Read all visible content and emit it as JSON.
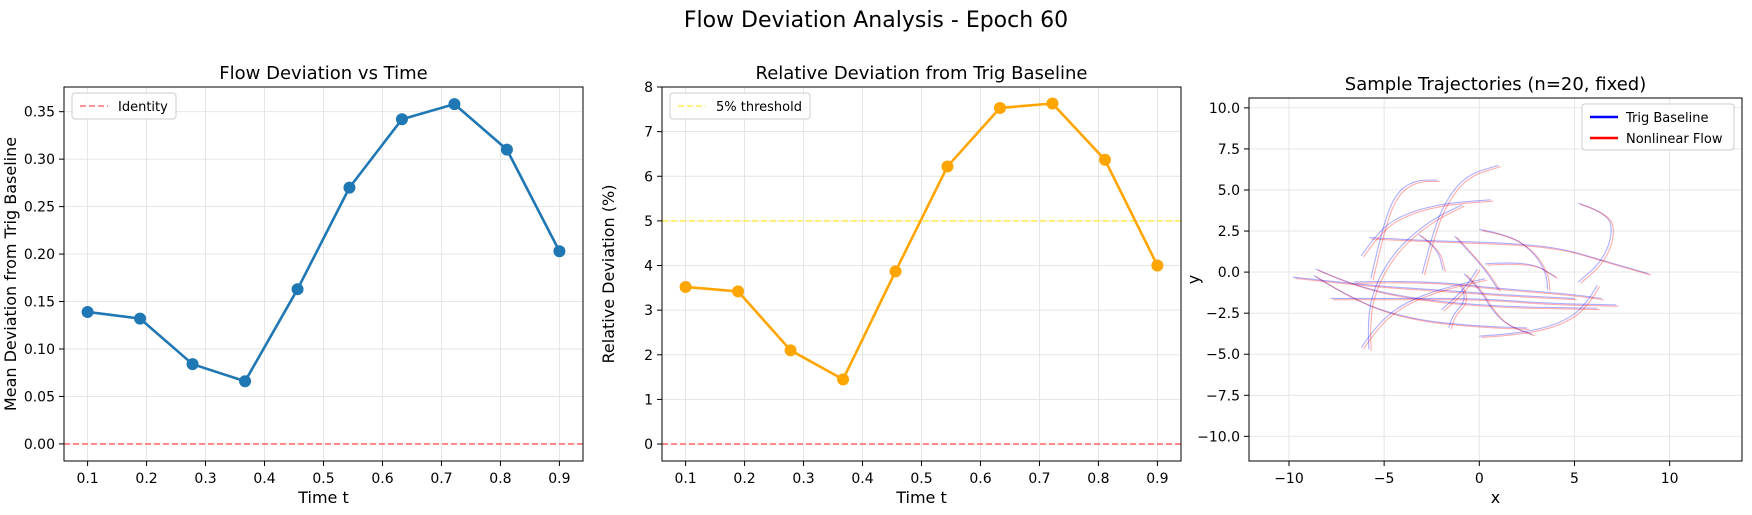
{
  "figure": {
    "suptitle": "Flow Deviation Analysis - Epoch 60"
  },
  "chart_data": [
    {
      "type": "line",
      "title": "Flow Deviation vs Time",
      "xlabel": "Time t",
      "ylabel": "Mean Deviation from Trig Baseline",
      "xlim": [
        0.06,
        0.94
      ],
      "ylim": [
        -0.018,
        0.376
      ],
      "xticks": [
        "0.1",
        "0.2",
        "0.3",
        "0.4",
        "0.5",
        "0.6",
        "0.7",
        "0.8",
        "0.9"
      ],
      "yticks": [
        "0.00",
        "0.05",
        "0.10",
        "0.15",
        "0.20",
        "0.25",
        "0.30",
        "0.35"
      ],
      "grid": true,
      "legend_position": "top-left",
      "series": [
        {
          "values": [
            [
              0.1,
              0.139
            ],
            [
              0.189,
              0.132
            ],
            [
              0.278,
              0.084
            ],
            [
              0.367,
              0.066
            ],
            [
              0.456,
              0.163
            ],
            [
              0.544,
              0.27
            ],
            [
              0.633,
              0.342
            ],
            [
              0.722,
              0.358
            ],
            [
              0.811,
              0.31
            ],
            [
              0.9,
              0.203
            ]
          ],
          "color": "#1f77b4"
        }
      ],
      "reference_lines": [
        {
          "name": "Identity",
          "y": 0,
          "color": "#ff6f6f",
          "style": "dashed"
        }
      ]
    },
    {
      "type": "line",
      "title": "Relative Deviation from Trig Baseline",
      "xlabel": "Time t",
      "ylabel": "Relative Deviation (%)",
      "xlim": [
        0.06,
        0.94
      ],
      "ylim": [
        -0.38,
        8.0
      ],
      "xticks": [
        "0.1",
        "0.2",
        "0.3",
        "0.4",
        "0.5",
        "0.6",
        "0.7",
        "0.8",
        "0.9"
      ],
      "yticks": [
        "0",
        "1",
        "2",
        "3",
        "4",
        "5",
        "6",
        "7",
        "8"
      ],
      "grid": true,
      "legend_position": "top-left",
      "series": [
        {
          "values": [
            [
              0.1,
              3.52
            ],
            [
              0.189,
              3.42
            ],
            [
              0.278,
              2.1
            ],
            [
              0.367,
              1.45
            ],
            [
              0.456,
              3.87
            ],
            [
              0.544,
              6.22
            ],
            [
              0.633,
              7.53
            ],
            [
              0.722,
              7.63
            ],
            [
              0.811,
              6.37
            ],
            [
              0.9,
              4.0
            ]
          ],
          "color": "#ffa500"
        }
      ],
      "reference_lines": [
        {
          "name": "5% threshold",
          "y": 5,
          "color": "#ffeb57",
          "style": "dashed"
        },
        {
          "y": 0,
          "color": "#ff6f6f",
          "style": "dashed"
        }
      ]
    },
    {
      "type": "line",
      "title": "Sample Trajectories (n=20, fixed)",
      "xlabel": "x",
      "ylabel": "y",
      "xlim": [
        -12.1,
        13.8
      ],
      "ylim": [
        -11.5,
        10.6
      ],
      "xticks": [
        "−10",
        "−5",
        "0",
        "5",
        "10"
      ],
      "yticks": [
        "−10.0",
        "−7.5",
        "−5.0",
        "−2.5",
        "0.0",
        "2.5",
        "5.0",
        "7.5",
        "10.0"
      ],
      "grid": true,
      "legend_position": "top-right",
      "legend": [
        {
          "name": "Trig Baseline",
          "color": "#0000ff"
        },
        {
          "name": "Nonlinear Flow",
          "color": "#ff0000"
        }
      ],
      "trajectories": [
        {
          "points": [
            [
              -9.8,
              -0.3
            ],
            [
              -6,
              -0.8
            ],
            [
              -2,
              -1.1
            ],
            [
              1.5,
              -1.4
            ],
            [
              5,
              -1.6
            ]
          ]
        },
        {
          "points": [
            [
              -7.8,
              -1.6
            ],
            [
              -4,
              -1.6
            ],
            [
              0,
              -1.6
            ],
            [
              3.5,
              -1.9
            ],
            [
              7.2,
              -2.0
            ]
          ]
        },
        {
          "points": [
            [
              -8.7,
              -0.2
            ],
            [
              -6.5,
              -1.8
            ],
            [
              -3.5,
              -2.9
            ],
            [
              0,
              -3.3
            ],
            [
              2.5,
              -3.4
            ]
          ]
        },
        {
          "points": [
            [
              -8.6,
              0.2
            ],
            [
              -6.5,
              -0.9
            ],
            [
              -3,
              -1.7
            ],
            [
              1,
              -2.1
            ],
            [
              6.2,
              -2.2
            ]
          ]
        },
        {
          "points": [
            [
              -5.8,
              2.1
            ],
            [
              -2.5,
              1.9
            ],
            [
              1,
              1.8
            ],
            [
              4.2,
              1.5
            ],
            [
              6.8,
              0.6
            ],
            [
              8.9,
              -0.1
            ]
          ]
        },
        {
          "points": [
            [
              -6.6,
              -0.6
            ],
            [
              -3,
              -0.5
            ],
            [
              1,
              -1.0
            ],
            [
              4.5,
              -1.3
            ],
            [
              6.4,
              -1.6
            ]
          ]
        },
        {
          "points": [
            [
              -6.2,
              -4.6
            ],
            [
              -5.4,
              -3.2
            ],
            [
              -4,
              -1.9
            ],
            [
              -2,
              -1.0
            ],
            [
              0.3,
              -0.4
            ]
          ]
        },
        {
          "points": [
            [
              -5.8,
              -4.7
            ],
            [
              -5.9,
              -2.8
            ],
            [
              -5.4,
              -0.5
            ],
            [
              -4.2,
              1.6
            ],
            [
              -2.5,
              3.2
            ],
            [
              -0.9,
              4.1
            ]
          ]
        },
        {
          "points": [
            [
              -5.7,
              -0.4
            ],
            [
              -5.1,
              2.7
            ],
            [
              -4.4,
              4.8
            ],
            [
              -3.4,
              5.6
            ],
            [
              -2.2,
              5.6
            ]
          ]
        },
        {
          "points": [
            [
              -3.0,
              -0.1
            ],
            [
              -2.5,
              2.2
            ],
            [
              -1.8,
              4.3
            ],
            [
              -0.7,
              5.9
            ],
            [
              1.0,
              6.5
            ]
          ]
        },
        {
          "points": [
            [
              -6.2,
              1.0
            ],
            [
              -5.2,
              2.7
            ],
            [
              -3.6,
              3.7
            ],
            [
              -1.7,
              4.2
            ],
            [
              0.6,
              4.4
            ]
          ]
        },
        {
          "points": [
            [
              5.2,
              4.2
            ],
            [
              6.8,
              3.6
            ],
            [
              7.0,
              2.2
            ],
            [
              6.4,
              0.6
            ],
            [
              5.2,
              -0.6
            ]
          ]
        },
        {
          "points": [
            [
              6.2,
              -0.8
            ],
            [
              5.5,
              -2.2
            ],
            [
              4.1,
              -3.2
            ],
            [
              2.2,
              -3.7
            ],
            [
              0,
              -3.9
            ]
          ]
        },
        {
          "points": [
            [
              -1.3,
              2.2
            ],
            [
              -0.5,
              1.2
            ],
            [
              0.4,
              0.0
            ],
            [
              1.0,
              -1.1
            ]
          ]
        },
        {
          "points": [
            [
              0.3,
              0.5
            ],
            [
              2.6,
              0.7
            ],
            [
              4.0,
              -0.3
            ]
          ]
        },
        {
          "points": [
            [
              -3.2,
              2.3
            ],
            [
              -2.2,
              1.5
            ],
            [
              -1.9,
              0.1
            ]
          ]
        },
        {
          "points": [
            [
              -0.8,
              -0.1
            ],
            [
              0,
              -1.0
            ],
            [
              0.6,
              -2.2
            ],
            [
              1.4,
              -3.2
            ],
            [
              2.8,
              -3.8
            ]
          ]
        },
        {
          "points": [
            [
              -0.1,
              0.2
            ],
            [
              -0.5,
              -0.6
            ],
            [
              -1.3,
              -1.6
            ],
            [
              -2.0,
              -2.3
            ]
          ]
        },
        {
          "points": [
            [
              0.0,
              2.6
            ],
            [
              1.5,
              2.3
            ],
            [
              2.8,
              1.3
            ],
            [
              3.5,
              0.0
            ],
            [
              3.6,
              -1.1
            ]
          ]
        },
        {
          "points": [
            [
              -1.0,
              -0.8
            ],
            [
              -0.6,
              -1.6
            ],
            [
              -1.4,
              -2.6
            ],
            [
              -1.6,
              -3.4
            ]
          ]
        }
      ]
    }
  ]
}
